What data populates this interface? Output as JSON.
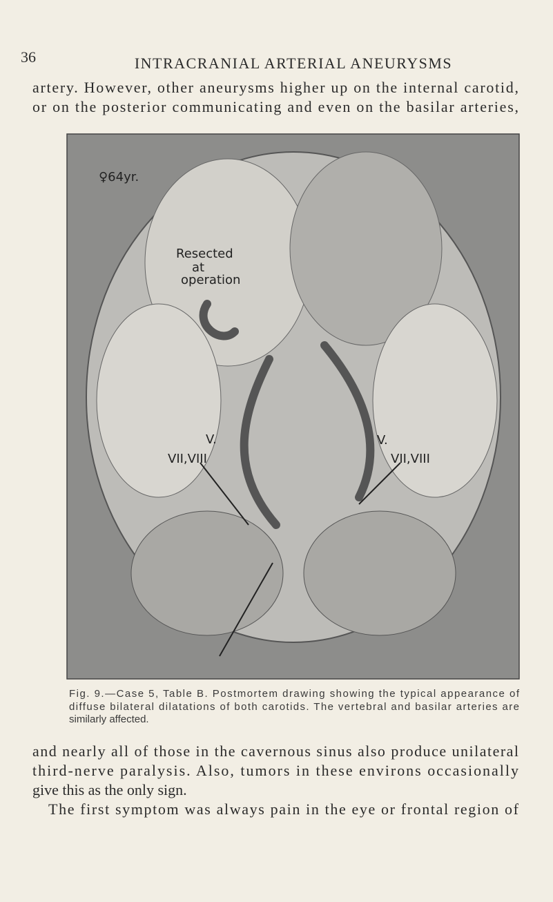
{
  "header": {
    "page_number": "36",
    "running_title": "INTRACRANIAL ARTERIAL ANEURYSMS"
  },
  "body_top": {
    "lines": [
      "artery. However, other aneurysms higher up on the internal carotid,",
      "or on the posterior communicating and even on the basilar arteries,"
    ]
  },
  "figure": {
    "labels": [
      "♀64yr.",
      "Resected",
      "at",
      "operation",
      "V.",
      "V.",
      "VII,VIII",
      "VII,VIII"
    ],
    "caption": {
      "lines": [
        "Fig. 9.—Case 5, Table B. Postmortem drawing showing the typical appearance of",
        "diffuse bilateral dilatations of both carotids. The vertebral and basilar arteries are",
        "similarly affected."
      ]
    }
  },
  "body_bottom": {
    "lines": [
      "and nearly all of those in the cavernous sinus also produce unilateral",
      "third-nerve paralysis. Also, tumors in these environs occasionally",
      "give this as the only sign.",
      "The first symptom was always pain in the eye or frontal region of"
    ]
  }
}
